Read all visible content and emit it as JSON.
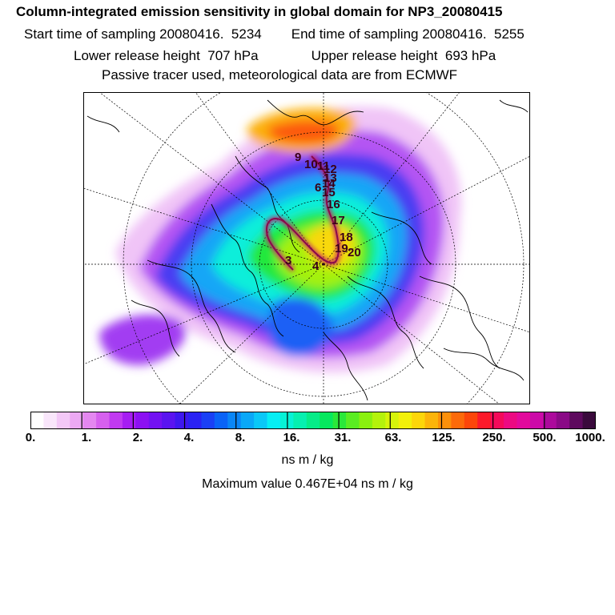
{
  "header": {
    "title": "Column-integrated emission sensitivity in global domain for NP3_20080415",
    "start_time": "Start time of sampling 20080416.  5234",
    "end_time": "End time of sampling 20080416.  5255",
    "lower_release": "Lower release height  707 hPa",
    "upper_release": "Upper release height  693 hPa",
    "tracer_note": "Passive tracer used, meteorological data are from ECMWF"
  },
  "map": {
    "projection": "north-polar-stereographic",
    "trajectory_labels": [
      "9",
      "10",
      "11",
      "12",
      "13",
      "14",
      "15",
      "6",
      "16",
      "17",
      "18",
      "19",
      "20",
      "3",
      "4"
    ]
  },
  "colorbar": {
    "tick_labels": [
      "0.",
      "1.",
      "2.",
      "4.",
      "8.",
      "16.",
      "31.",
      "63.",
      "125.",
      "250.",
      "500.",
      "1000."
    ],
    "colors": [
      "#ffffff",
      "#f9e6fb",
      "#f3c8f7",
      "#eca9f3",
      "#e487f0",
      "#d660ee",
      "#c13af0",
      "#a61df2",
      "#8c10f2",
      "#7312f2",
      "#5a14f0",
      "#3e18ef",
      "#2a22f3",
      "#1a40f5",
      "#0a63f7",
      "#0a86f7",
      "#0aa8f7",
      "#0ac8f7",
      "#06eef4",
      "#06f2d6",
      "#06f0b0",
      "#06ec88",
      "#06e85e",
      "#2ae83a",
      "#5aec22",
      "#8af00f",
      "#b4f20c",
      "#d6f40a",
      "#f2f00a",
      "#fcd60a",
      "#fcb40a",
      "#fc900a",
      "#fc6a0a",
      "#fc460a",
      "#fc1a2a",
      "#f40a5a",
      "#ec0a82",
      "#e20a9c",
      "#cc0aa8",
      "#ac0a9c",
      "#8a0a86",
      "#5e0a5e",
      "#3a0a3c"
    ],
    "unit": "ns m / kg"
  },
  "max_value": "Maximum value  0.467E+04 ns m / kg"
}
